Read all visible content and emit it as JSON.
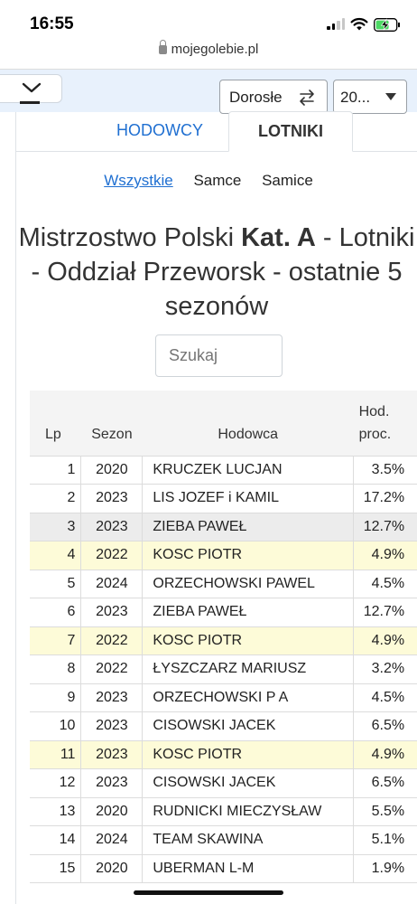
{
  "status_bar": {
    "time": "16:55"
  },
  "browser": {
    "url": "mojegolebie.pl"
  },
  "nav": {
    "category_select": "Dorosłe",
    "year_select": "20..."
  },
  "tabs": [
    {
      "label": "HODOWCY",
      "active": false
    },
    {
      "label": "LOTNIKI",
      "active": true
    }
  ],
  "filters": [
    {
      "label": "Wszystkie",
      "active": true
    },
    {
      "label": "Samce",
      "active": false
    },
    {
      "label": "Samice",
      "active": false
    }
  ],
  "heading": {
    "part1": "Mistrzostwo Polski ",
    "part2": "Kat. A",
    "part3": " - Lotniki - Oddział Przeworsk - ostatnie 5 sezonów"
  },
  "search": {
    "placeholder": "Szukaj"
  },
  "table": {
    "headers": {
      "lp": "Lp",
      "sezon": "Sezon",
      "hodowca": "Hodowca",
      "proc_line1": "Hod.",
      "proc_line2": "proc."
    },
    "rows": [
      {
        "lp": "1",
        "sezon": "2020",
        "hodowca": "KRUCZEK LUCJAN",
        "proc": "3.5%",
        "highlight": "none"
      },
      {
        "lp": "2",
        "sezon": "2023",
        "hodowca": "LIS JOZEF i KAMIL",
        "proc": "17.2%",
        "highlight": "none"
      },
      {
        "lp": "3",
        "sezon": "2023",
        "hodowca": "ZIEBA PAWEŁ",
        "proc": "12.7%",
        "highlight": "grey"
      },
      {
        "lp": "4",
        "sezon": "2022",
        "hodowca": "KOSC PIOTR",
        "proc": "4.9%",
        "highlight": "yellow"
      },
      {
        "lp": "5",
        "sezon": "2024",
        "hodowca": "ORZECHOWSKI PAWEL",
        "proc": "4.5%",
        "highlight": "none"
      },
      {
        "lp": "6",
        "sezon": "2023",
        "hodowca": "ZIEBA PAWEŁ",
        "proc": "12.7%",
        "highlight": "none"
      },
      {
        "lp": "7",
        "sezon": "2022",
        "hodowca": "KOSC PIOTR",
        "proc": "4.9%",
        "highlight": "yellow"
      },
      {
        "lp": "8",
        "sezon": "2022",
        "hodowca": "ŁYSZCZARZ MARIUSZ",
        "proc": "3.2%",
        "highlight": "none"
      },
      {
        "lp": "9",
        "sezon": "2023",
        "hodowca": "ORZECHOWSKI P A",
        "proc": "4.5%",
        "highlight": "none"
      },
      {
        "lp": "10",
        "sezon": "2023",
        "hodowca": "CISOWSKI JACEK",
        "proc": "6.5%",
        "highlight": "none"
      },
      {
        "lp": "11",
        "sezon": "2023",
        "hodowca": "KOSC PIOTR",
        "proc": "4.9%",
        "highlight": "yellow"
      },
      {
        "lp": "12",
        "sezon": "2023",
        "hodowca": "CISOWSKI JACEK",
        "proc": "6.5%",
        "highlight": "none"
      },
      {
        "lp": "13",
        "sezon": "2020",
        "hodowca": "RUDNICKI MIECZYSŁAW",
        "proc": "5.5%",
        "highlight": "none"
      },
      {
        "lp": "14",
        "sezon": "2024",
        "hodowca": "TEAM SKAWINA",
        "proc": "5.1%",
        "highlight": "none"
      },
      {
        "lp": "15",
        "sezon": "2020",
        "hodowca": "UBERMAN L-M",
        "proc": "1.9%",
        "highlight": "none"
      }
    ]
  },
  "colors": {
    "link": "#1f6fd1",
    "nav_bg": "#e8f1fc",
    "row_grey": "#ececec",
    "row_yellow": "#fdfbd8",
    "battery": "#4cd964"
  },
  "icons": [
    "signal-icon",
    "wifi-icon",
    "battery-charging-icon",
    "lock-icon",
    "chevron-down-icon",
    "swap-arrows-icon",
    "caret-down-icon"
  ]
}
